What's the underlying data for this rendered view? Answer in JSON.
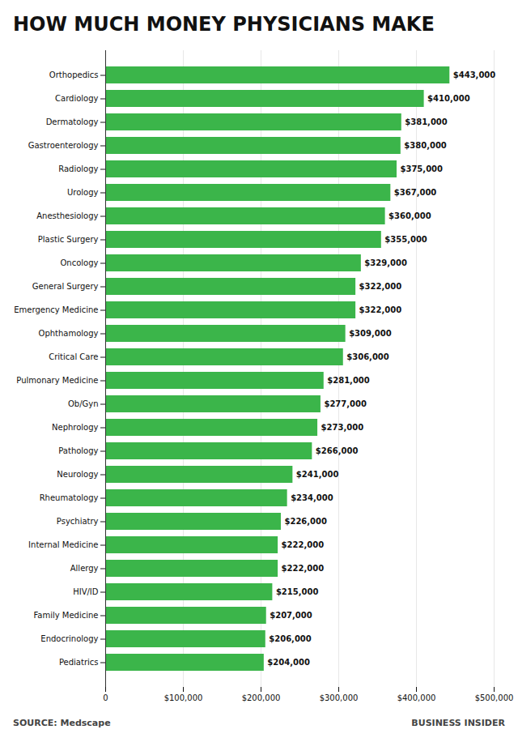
{
  "chart_data": {
    "type": "bar",
    "title": "HOW MUCH MONEY PHYSICIANS MAKE",
    "orientation": "horizontal",
    "categories": [
      "Orthopedics",
      "Cardiology",
      "Dermatology",
      "Gastroenterology",
      "Radiology",
      "Urology",
      "Anesthesiology",
      "Plastic Surgery",
      "Oncology",
      "General Surgery",
      "Emergency Medicine",
      "Ophthamology",
      "Critical Care",
      "Pulmonary Medicine",
      "Ob/Gyn",
      "Nephrology",
      "Pathology",
      "Neurology",
      "Rheumatology",
      "Psychiatry",
      "Internal Medicine",
      "Allergy",
      "HIV/ID",
      "Family Medicine",
      "Endocrinology",
      "Pediatrics"
    ],
    "values": [
      443000,
      410000,
      381000,
      380000,
      375000,
      367000,
      360000,
      355000,
      329000,
      322000,
      322000,
      309000,
      306000,
      281000,
      277000,
      273000,
      266000,
      241000,
      234000,
      226000,
      222000,
      222000,
      215000,
      207000,
      206000,
      204000
    ],
    "value_labels": [
      "$443,000",
      "$410,000",
      "$381,000",
      "$380,000",
      "$375,000",
      "$367,000",
      "$360,000",
      "$355,000",
      "$329,000",
      "$322,000",
      "$322,000",
      "$309,000",
      "$306,000",
      "$281,000",
      "$277,000",
      "$273,000",
      "$266,000",
      "$241,000",
      "$234,000",
      "$226,000",
      "$222,000",
      "$222,000",
      "$215,000",
      "$207,000",
      "$206,000",
      "$204,000"
    ],
    "data_labels": true,
    "color": "#3BB54A",
    "xlim": [
      0,
      500000
    ],
    "xticks": [
      0,
      {
        "value": 100000,
        "label": "$100,000"
      },
      {
        "value": 200000,
        "label": "$200,000"
      },
      {
        "value": 300000,
        "label": "$300,000"
      },
      {
        "value": 400000,
        "label": "$400,000"
      },
      {
        "value": 500000,
        "label": "$500,000"
      }
    ],
    "grid": true,
    "annotations": [
      "SOURCE: Medscape",
      "BUSINESS INSIDER"
    ]
  }
}
